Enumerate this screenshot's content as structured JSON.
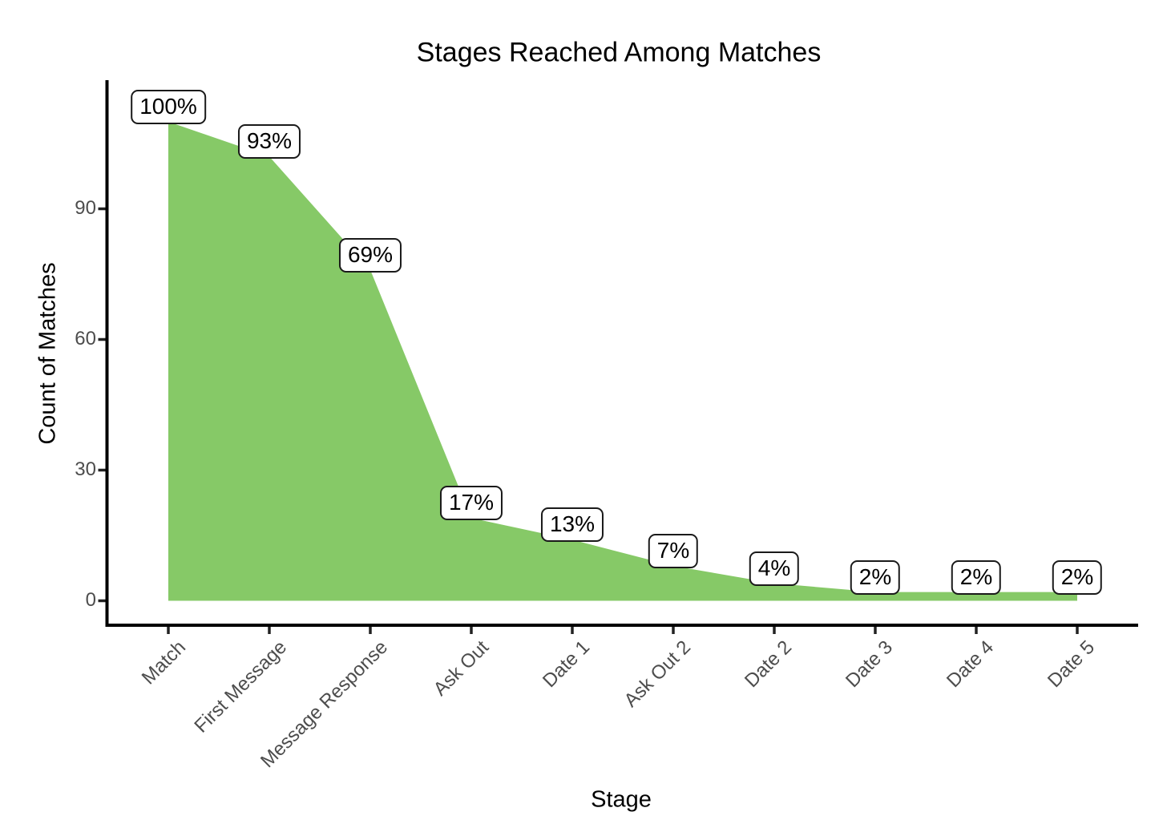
{
  "chart_data": {
    "type": "area",
    "title": "Stages Reached Among Matches",
    "xlabel": "Stage",
    "ylabel": "Count of Matches",
    "categories": [
      "Match",
      "First Message",
      "Message Response",
      "Ask Out",
      "Date 1",
      "Ask Out 2",
      "Date 2",
      "Date 3",
      "Date 4",
      "Date 5"
    ],
    "counts": [
      110,
      102,
      76,
      19,
      14,
      8,
      4,
      2,
      2,
      2
    ],
    "percent_labels": [
      "100%",
      "93%",
      "69%",
      "17%",
      "13%",
      "7%",
      "4%",
      "2%",
      "2%",
      "2%"
    ],
    "yticks": [
      0,
      30,
      60,
      90
    ],
    "ylim": [
      0,
      115
    ],
    "grid": "off",
    "legend": "none",
    "colors": {
      "area_fill": "#86C967",
      "axis_line": "#000000",
      "tick_mark": "#222222",
      "tick_label": "#4d4d4d",
      "title_text": "#000000",
      "label_box_fill": "#ffffff",
      "label_box_border": "#1a1a1a",
      "label_text": "#000000",
      "background": "#ffffff"
    }
  }
}
